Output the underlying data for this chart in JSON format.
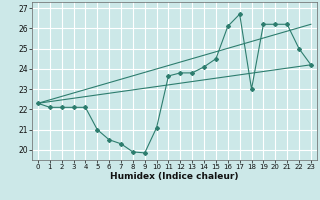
{
  "bg_color": "#cce8e8",
  "grid_color": "#ffffff",
  "line_color": "#2d7d6e",
  "xlabel": "Humidex (Indice chaleur)",
  "xlim": [
    -0.5,
    23.5
  ],
  "ylim": [
    19.5,
    27.3
  ],
  "yticks": [
    20,
    21,
    22,
    23,
    24,
    25,
    26,
    27
  ],
  "xticks": [
    0,
    1,
    2,
    3,
    4,
    5,
    6,
    7,
    8,
    9,
    10,
    11,
    12,
    13,
    14,
    15,
    16,
    17,
    18,
    19,
    20,
    21,
    22,
    23
  ],
  "line1_x": [
    0,
    1,
    2,
    3,
    4,
    5,
    6,
    7,
    8,
    9,
    10,
    11,
    12,
    13,
    14,
    15,
    16,
    17,
    18,
    19,
    20,
    21,
    22,
    23
  ],
  "line1_y": [
    22.3,
    22.1,
    22.1,
    22.1,
    22.1,
    21.0,
    20.5,
    20.3,
    19.9,
    19.85,
    21.1,
    23.65,
    23.8,
    23.8,
    24.1,
    24.5,
    26.1,
    26.7,
    23.0,
    26.2,
    26.2,
    26.2,
    25.0,
    24.2
  ],
  "line2_x": [
    0,
    23
  ],
  "line2_y": [
    22.3,
    24.2
  ],
  "line3_x": [
    0,
    23
  ],
  "line3_y": [
    22.3,
    26.2
  ]
}
